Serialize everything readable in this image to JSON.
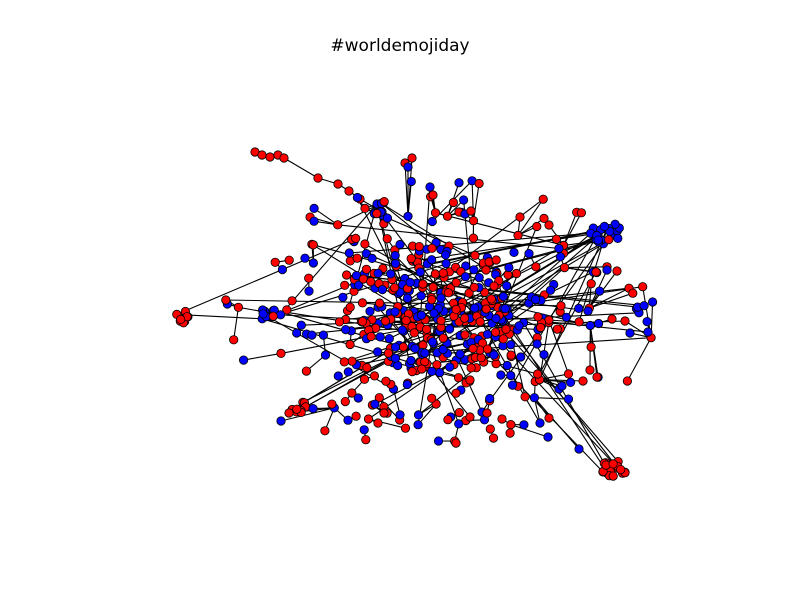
{
  "title": "#worldemojiday",
  "colors": {
    "background": "#ffffff",
    "edge": "#000000",
    "node_group_a": "#ff0000",
    "node_group_b": "#0000ff",
    "node_outline": "#000000"
  },
  "graph": {
    "type": "network",
    "node_groups": [
      "red",
      "blue"
    ]
  }
}
